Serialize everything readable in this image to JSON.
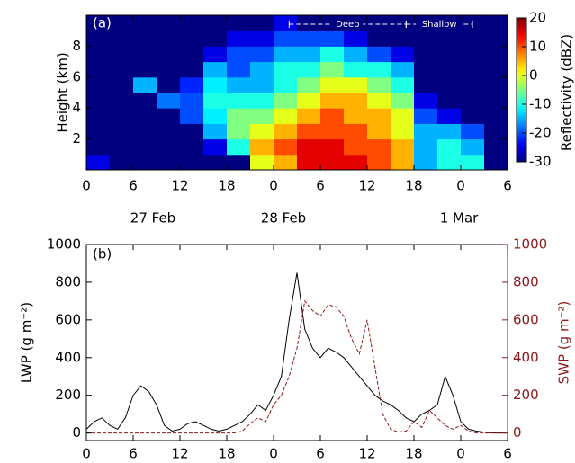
{
  "chart_data": [
    {
      "type": "heatmap",
      "panel_label": "(a)",
      "y_label": "Height (km)",
      "colorbar_label": "Reflectivity (dBZ)",
      "colormap": "jet",
      "x_bins": [
        0,
        3,
        6,
        9,
        12,
        15,
        18,
        21,
        24,
        27,
        30,
        33,
        36,
        39,
        42,
        45,
        48,
        51,
        54
      ],
      "y_bins": [
        0,
        1,
        2,
        3,
        4,
        5,
        6,
        7,
        8,
        9,
        10
      ],
      "z": [
        [
          -25,
          -30,
          -30,
          -30,
          -30,
          -30,
          -30,
          -30,
          -30,
          -30
        ],
        [
          -30,
          -30,
          -30,
          -30,
          -30,
          -30,
          -30,
          -30,
          -30,
          -30
        ],
        [
          -30,
          -30,
          -30,
          -30,
          -30,
          -15,
          -30,
          -30,
          -30,
          -30
        ],
        [
          -30,
          -30,
          -30,
          -30,
          -18,
          -30,
          -30,
          -30,
          -30,
          -30
        ],
        [
          -30,
          -30,
          -30,
          -20,
          -20,
          -22,
          -30,
          -30,
          -30,
          -30
        ],
        [
          -30,
          -25,
          -15,
          -12,
          -10,
          -12,
          -15,
          -25,
          -30,
          -30
        ],
        [
          -30,
          -10,
          -5,
          -5,
          -10,
          -15,
          -20,
          -20,
          -25,
          -30
        ],
        [
          0,
          5,
          0,
          -5,
          -10,
          -15,
          -15,
          -20,
          -25,
          -30
        ],
        [
          5,
          10,
          5,
          0,
          -5,
          -10,
          -10,
          -15,
          -20,
          -25
        ],
        [
          15,
          15,
          10,
          5,
          0,
          -5,
          -10,
          -15,
          -20,
          -30
        ],
        [
          15,
          15,
          10,
          10,
          5,
          0,
          -5,
          -10,
          -20,
          -30
        ],
        [
          15,
          10,
          10,
          5,
          5,
          0,
          -10,
          -15,
          -25,
          -30
        ],
        [
          10,
          10,
          5,
          5,
          0,
          -5,
          -10,
          -20,
          -30,
          -30
        ],
        [
          5,
          5,
          0,
          0,
          -5,
          -10,
          -15,
          -25,
          -30,
          -30
        ],
        [
          -15,
          -15,
          -15,
          -20,
          -25,
          -30,
          -30,
          -30,
          -30,
          -30
        ],
        [
          -10,
          -10,
          -15,
          -25,
          -30,
          -30,
          -30,
          -30,
          -30,
          -30
        ],
        [
          -10,
          -15,
          -20,
          -30,
          -30,
          -30,
          -30,
          -30,
          -30,
          -30
        ],
        [
          -30,
          -30,
          -30,
          -30,
          -30,
          -30,
          -30,
          -30,
          -30,
          -30
        ]
      ],
      "xlim": [
        0,
        54
      ],
      "xticks": [
        {
          "value": 0,
          "label": "0"
        },
        {
          "value": 6,
          "label": "6"
        },
        {
          "value": 12,
          "label": "12"
        },
        {
          "value": 18,
          "label": "18"
        },
        {
          "value": 24,
          "label": "0"
        },
        {
          "value": 30,
          "label": "6"
        },
        {
          "value": 36,
          "label": "12"
        },
        {
          "value": 42,
          "label": "18"
        },
        {
          "value": 48,
          "label": "0"
        },
        {
          "value": 54,
          "label": "6"
        }
      ],
      "ylim": [
        0,
        10
      ],
      "yticks": [
        2,
        4,
        6,
        8
      ],
      "clim": [
        -30,
        20
      ],
      "cticks": [
        -30,
        -20,
        -10,
        0,
        10,
        20
      ],
      "date_labels": [
        "27 Feb",
        "28 Feb",
        "1 Mar"
      ],
      "annotations": [
        {
          "text": "Deep",
          "x": [
            26,
            41
          ]
        },
        {
          "text": "Shallow",
          "x": [
            41,
            49.5
          ]
        }
      ]
    },
    {
      "type": "line",
      "panel_label": "(b)",
      "y_label": "LWP (g m⁻²)",
      "y2_label": "SWP (g m⁻²)",
      "x": [
        0,
        1,
        2,
        3,
        4,
        5,
        6,
        7,
        8,
        9,
        10,
        11,
        12,
        13,
        14,
        15,
        16,
        17,
        18,
        19,
        20,
        21,
        22,
        23,
        24,
        25,
        26,
        27,
        28,
        29,
        30,
        31,
        32,
        33,
        34,
        35,
        36,
        37,
        38,
        39,
        40,
        41,
        42,
        43,
        44,
        45,
        46,
        47,
        48,
        49,
        50,
        51,
        52,
        53,
        54
      ],
      "series": [
        {
          "name": "LWP",
          "color": "#000000",
          "values": [
            20,
            60,
            80,
            40,
            20,
            80,
            200,
            250,
            220,
            150,
            40,
            10,
            20,
            50,
            60,
            40,
            20,
            10,
            20,
            40,
            60,
            100,
            150,
            120,
            200,
            300,
            600,
            850,
            550,
            450,
            400,
            450,
            430,
            400,
            350,
            300,
            250,
            200,
            170,
            150,
            120,
            80,
            60,
            100,
            120,
            150,
            300,
            200,
            60,
            20,
            10,
            5,
            0,
            0,
            0
          ]
        },
        {
          "name": "SWP",
          "color": "#8b1a1a",
          "axis": "y2",
          "values": [
            0,
            0,
            0,
            0,
            0,
            0,
            0,
            0,
            0,
            0,
            0,
            0,
            0,
            0,
            0,
            0,
            0,
            0,
            0,
            0,
            10,
            50,
            80,
            60,
            150,
            200,
            300,
            450,
            700,
            650,
            620,
            680,
            670,
            620,
            500,
            420,
            600,
            350,
            100,
            20,
            5,
            10,
            60,
            30,
            120,
            80,
            40,
            20,
            40,
            10,
            0,
            0,
            0,
            0,
            0
          ]
        }
      ],
      "xlim": [
        0,
        54
      ],
      "xticks": [
        {
          "value": 0,
          "label": "0"
        },
        {
          "value": 6,
          "label": "6"
        },
        {
          "value": 12,
          "label": "12"
        },
        {
          "value": 18,
          "label": "18"
        },
        {
          "value": 24,
          "label": "0"
        },
        {
          "value": 30,
          "label": "6"
        },
        {
          "value": 36,
          "label": "12"
        },
        {
          "value": 42,
          "label": "18"
        },
        {
          "value": 48,
          "label": "0"
        },
        {
          "value": 54,
          "label": "6"
        }
      ],
      "ylim": [
        -40,
        1000
      ],
      "yticks": [
        0,
        200,
        400,
        600,
        800,
        1000
      ],
      "y2lim": [
        -40,
        1000
      ],
      "y2ticks": [
        0,
        200,
        400,
        600,
        800,
        1000
      ]
    }
  ]
}
